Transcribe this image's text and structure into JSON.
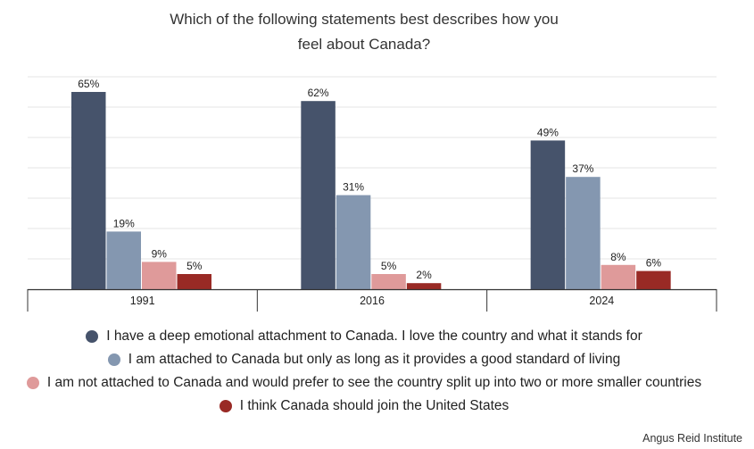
{
  "title_lines": [
    "Which of the following statements best describes how you",
    "feel about Canada?"
  ],
  "source": "Angus Reid Institute",
  "colors": [
    "#46536b",
    "#8497b0",
    "#df9a9a",
    "#992a25"
  ],
  "chart_data": {
    "type": "bar",
    "title": "Which of the following statements best describes how you feel about Canada?",
    "categories": [
      "1991",
      "2016",
      "2024"
    ],
    "ylim": [
      0,
      70
    ],
    "grid": true,
    "legend_position": "bottom",
    "value_suffix": "%",
    "series": [
      {
        "name": "I have a deep emotional attachment to Canada. I love the country and what it stands for",
        "values": [
          65,
          62,
          49
        ]
      },
      {
        "name": "I am attached to Canada but only as long as it provides a good standard of living",
        "values": [
          19,
          31,
          37
        ]
      },
      {
        "name": "I am not attached to Canada and would prefer to see the country split up into two or more smaller countries",
        "values": [
          9,
          5,
          8
        ]
      },
      {
        "name": "I think Canada should join the United States",
        "values": [
          5,
          2,
          6
        ]
      }
    ]
  }
}
